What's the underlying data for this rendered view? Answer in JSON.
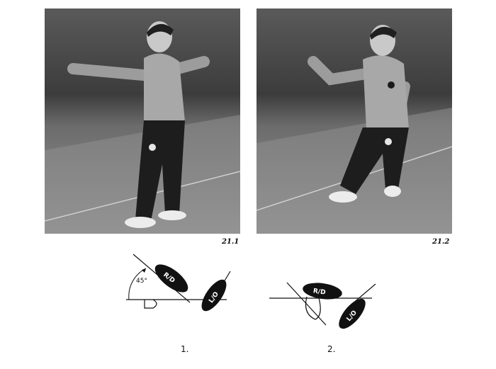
{
  "photos": [
    {
      "caption": "21.1"
    },
    {
      "caption": "21.2"
    }
  ],
  "diagrams": [
    {
      "label": "1.",
      "angle_label": "45°",
      "right_foot_mark": "R/D",
      "left_foot_mark": "L/O"
    },
    {
      "label": "2.",
      "right_foot_mark": "R/D",
      "left_foot_mark": "L/O"
    }
  ]
}
